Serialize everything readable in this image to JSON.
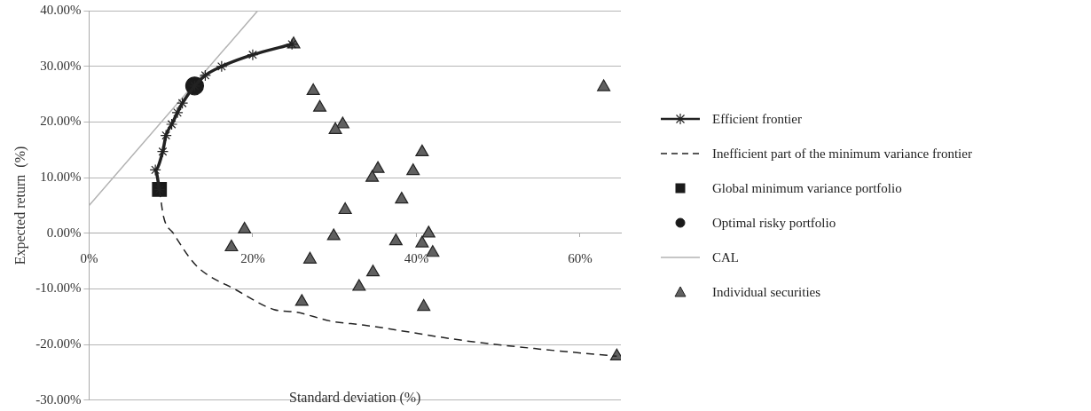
{
  "chart_data": {
    "type": "scatter",
    "xlabel": "Standard deviation (%)",
    "ylabel": "Expected return  (%)",
    "xlim": [
      0,
      65
    ],
    "ylim": [
      -30,
      40
    ],
    "xticks": [
      {
        "value": 0,
        "label": "0%"
      },
      {
        "value": 20,
        "label": "20%"
      },
      {
        "value": 40,
        "label": "40%"
      },
      {
        "value": 60,
        "label": "60%"
      }
    ],
    "yticks": [
      {
        "value": -30,
        "label": "-30.00%"
      },
      {
        "value": -20,
        "label": "-20.00%"
      },
      {
        "value": -10,
        "label": "-10.00%"
      },
      {
        "value": 0,
        "label": "0.00%"
      },
      {
        "value": 10,
        "label": "10.00%"
      },
      {
        "value": 20,
        "label": "20.00%"
      },
      {
        "value": 30,
        "label": "30.00%"
      },
      {
        "value": 40,
        "label": "40.00%"
      }
    ],
    "grid": "y",
    "legend": "right",
    "series": [
      {
        "name": "Efficient frontier",
        "type": "line",
        "color": "#222222",
        "marker": "cross",
        "line_style": "solid",
        "x": [
          8.6,
          8.1,
          9.0,
          9.4,
          10.1,
          10.8,
          11.4,
          12.9,
          14.2,
          16.2,
          20.0,
          24.8
        ],
        "values": [
          7.9,
          11.4,
          14.7,
          17.6,
          19.6,
          21.7,
          23.4,
          26.5,
          28.4,
          30.0,
          32.1,
          34.0
        ]
      },
      {
        "name": "Inefficient part of the minimum variance frontier",
        "type": "line",
        "color": "#222222",
        "marker": "none",
        "line_style": "dashed",
        "x": [
          8.6,
          9.1,
          10.3,
          13.1,
          18.0,
          22.6,
          25.4,
          29.6,
          33.6,
          45.9,
          55.0,
          64.5
        ],
        "values": [
          7.9,
          3.0,
          0,
          -5.8,
          -10.2,
          -13.7,
          -14.2,
          -15.8,
          -16.5,
          -19.3,
          -20.8,
          -22.1
        ]
      },
      {
        "name": "Global minimum variance portfolio",
        "type": "scatter",
        "color": "#1a1a1a",
        "marker": "square",
        "x": [
          8.6
        ],
        "values": [
          7.9
        ]
      },
      {
        "name": "Optimal risky portfolio",
        "type": "scatter",
        "color": "#1a1a1a",
        "marker": "circle",
        "x": [
          12.9
        ],
        "values": [
          26.5
        ]
      },
      {
        "name": "CAL",
        "type": "line",
        "color": "#b3b3b3",
        "marker": "none",
        "line_style": "solid",
        "x": [
          0,
          20.6
        ],
        "values": [
          5.0,
          40.0
        ]
      },
      {
        "name": "Individual securities",
        "type": "scatter",
        "color": "#606060",
        "marker": "triangle",
        "x": [
          25.0,
          27.4,
          28.2,
          31.0,
          30.1,
          40.7,
          39.6,
          35.3,
          34.6,
          38.2,
          31.3,
          19.0,
          17.4,
          29.9,
          27.0,
          37.5,
          41.5,
          40.7,
          42.0,
          34.7,
          33.0,
          26.0,
          40.9,
          62.9,
          64.5
        ],
        "values": [
          34.0,
          25.6,
          22.6,
          19.6,
          18.6,
          14.6,
          11.2,
          11.6,
          10.0,
          6.1,
          4.2,
          0.7,
          -2.5,
          -0.5,
          -4.7,
          -1.4,
          0,
          -1.8,
          -3.5,
          -7.0,
          -9.6,
          -12.3,
          -13.2,
          26.3,
          -22.1
        ]
      }
    ]
  }
}
